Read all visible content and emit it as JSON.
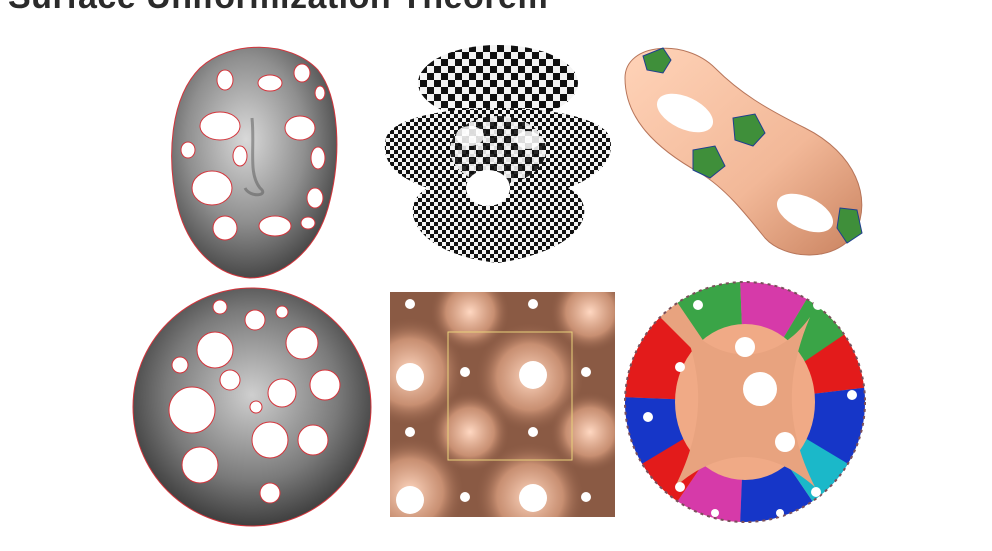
{
  "slide": {
    "title": "Surface Uniformization Theorem",
    "colors": {
      "face_gray": "#8d8d8d",
      "hole_outline": "#d4343b",
      "skin": "#f2b898",
      "patch_green": "#3f8f3a",
      "torus_brown": "#8a5a44",
      "fundamental_domain": "#e9d27a"
    }
  },
  "panels": [
    {
      "id": "face-with-holes",
      "row": 1,
      "col": 1
    },
    {
      "id": "checkerboard-surface",
      "row": 1,
      "col": 2
    },
    {
      "id": "genus-two-surface",
      "row": 1,
      "col": 3
    },
    {
      "id": "circle-domain-map",
      "row": 2,
      "col": 1
    },
    {
      "id": "flat-torus-domain",
      "row": 2,
      "col": 2
    },
    {
      "id": "hyperbolic-disk-tiling",
      "row": 2,
      "col": 3
    }
  ]
}
